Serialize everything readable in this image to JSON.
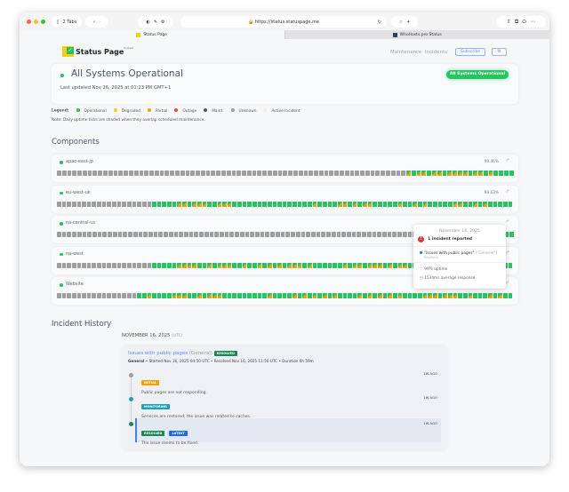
{
  "browser": {
    "tabs_count": "2 Tabs",
    "url": "https://status.statuspage.me",
    "tabs": [
      {
        "label": "Status Page",
        "active": true
      },
      {
        "label": "WhoHosts.pro Status",
        "active": false
      }
    ]
  },
  "header": {
    "logo_text": "Status Page",
    "logo_sup": "hosted",
    "nav": {
      "maintenance": "Maintenance",
      "incidents": "Incidents",
      "subscribe": "Subscribe"
    }
  },
  "status": {
    "title": "All Systems Operational",
    "updated": "Last updated Nov 26, 2025 at 01:23 PM GMT+1",
    "badge": "All Systems Operational"
  },
  "legend": {
    "label": "Legend:",
    "items": [
      {
        "label": "Operational",
        "color": "#22c55e"
      },
      {
        "label": "Degraded",
        "color": "#facc15"
      },
      {
        "label": "Partial",
        "color": "#f59e0b"
      },
      {
        "label": "Outage",
        "color": "#ef4444"
      },
      {
        "label": "Maint.",
        "color": "#475569"
      },
      {
        "label": "Unknown",
        "color": "#9e9e9e"
      },
      {
        "label": "Active Incident",
        "color": "#f5ebdc"
      }
    ],
    "note": "Note: Daily uptime ticks are shaded when they overlap scheduled maintenance."
  },
  "components": {
    "heading": "Components",
    "items": [
      {
        "name": "apac-east-jp",
        "uptime": "99.46%",
        "ticks": "uuuuuuuuuuuuuuuuuuuuuuuuuuuuuuuuuuuuuuuuuuuuuuuuuuuuuuuuuuuuuuuuuuuupoppoppoppppoppopoooo"
      },
      {
        "name": "eu-west-uk",
        "uptime": "99.63%",
        "ticks": "uuuuuuuuuuuuuuuuuuuoooooppopppoopppoooooooooooooooopooooppopoppooooopoopopoooooppoopopooooo"
      },
      {
        "name": "na-central-us",
        "uptime": "",
        "ticks": "uuuuuuuuuuuuuuuuuuuuuuuuuuuuuuuuuuuuuuuuuuuuuuuuuuuuuuuuuuuuuuuuuuuuuuuuuuuuuuuuuuuuuuoooo"
      },
      {
        "name": "na-west",
        "uptime": "",
        "ticks": "uuuuuuuuuuuuuuuuuuuoooooppppoopopppoopoopopopopppopoooooopoppopppopoppopppopooopppopopooooo"
      },
      {
        "name": "Website",
        "uptime": "",
        "ticks": "uuuuuuuuuuuuuuuuoopoooopppoopopppooooooooopoooopopopopopoooopopopopopoooopppopppoopooopopoo"
      }
    ]
  },
  "tooltip": {
    "date": "November 16, 2025",
    "count": "1 incident reported",
    "incident": "\"Issues with public pages\"",
    "category": "(\"General\")",
    "state": "Resolved",
    "uptime": "99% uptime",
    "response": "1534ms average response"
  },
  "history": {
    "heading": "Incident History",
    "date": "NOVEMBER 16, 2025",
    "tz": "(UTC)",
    "incident": {
      "title": "Issues with public pages",
      "category": "(General)",
      "badge": "RESOLVED",
      "meta_bold": "General",
      "meta": " • Started Nov 16, 2025 04:50 UTC • Resolved Nov 16, 2025 11:50 UTC • Duration 6h 59m",
      "updates": [
        {
          "status": "INITIAL",
          "color": "#f59e0b",
          "dot": "#9e9e9e",
          "text": "Public pages are not responding.",
          "ago": "1W AGO"
        },
        {
          "status": "MONITORING",
          "color": "#17a2b8",
          "dot": "#17a2b8",
          "text": "Services are restored; the issue was related to caches.",
          "ago": "1W AGO"
        },
        {
          "status": "RESOLVED",
          "latest": "LATEST",
          "color": "#198754",
          "dot": "#198754",
          "text": "The issue seems to be fixed.",
          "ago": "1W AGO"
        }
      ]
    }
  }
}
